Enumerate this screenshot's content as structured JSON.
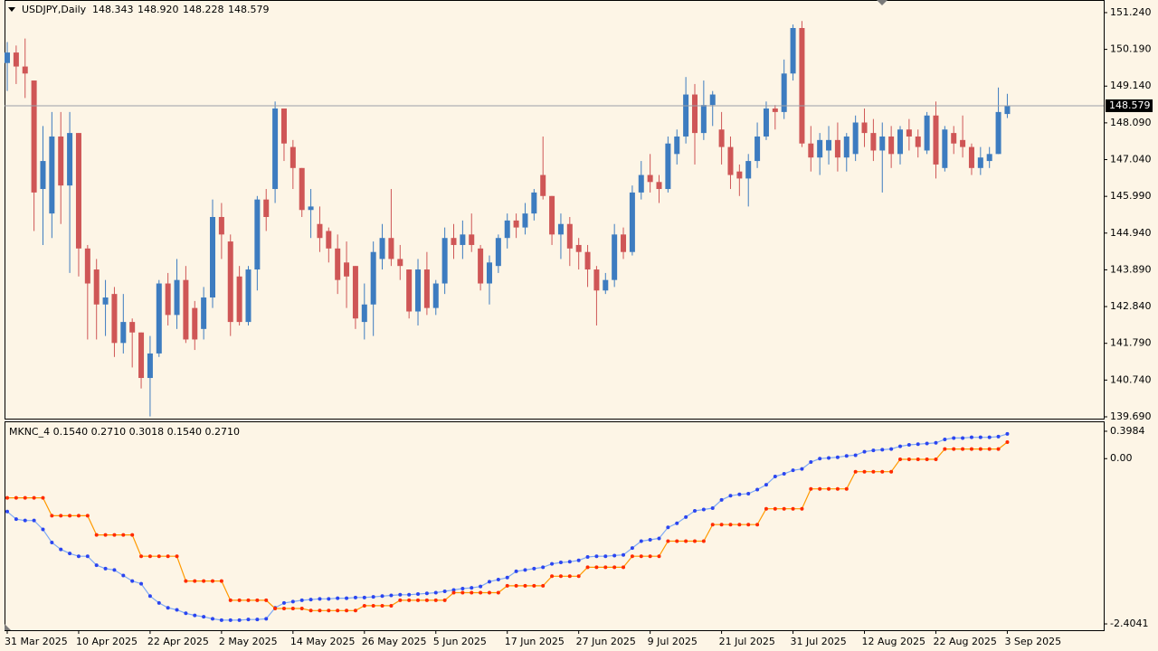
{
  "chart_data": [
    {
      "type": "candlestick",
      "title": "USDJPY,Daily",
      "ohlc_labels": [
        "148.343",
        "148.920",
        "148.228",
        "148.579"
      ],
      "categories": [
        "31 Mar 2025",
        null,
        null,
        null,
        null,
        null,
        null,
        null,
        "10 Apr 2025",
        null,
        null,
        null,
        null,
        null,
        null,
        null,
        "22 Apr 2025",
        null,
        null,
        null,
        null,
        null,
        null,
        null,
        "2 May 2025",
        null,
        null,
        null,
        null,
        null,
        null,
        null,
        "14 May 2025",
        null,
        null,
        null,
        null,
        null,
        null,
        null,
        "26 May 2025",
        null,
        null,
        null,
        null,
        null,
        null,
        null,
        "5 Jun 2025",
        null,
        null,
        null,
        null,
        null,
        null,
        null,
        "17 Jun 2025",
        null,
        null,
        null,
        null,
        null,
        null,
        null,
        "27 Jun 2025",
        null,
        null,
        null,
        null,
        null,
        null,
        null,
        "9 Jul 2025",
        null,
        null,
        null,
        null,
        null,
        null,
        null,
        "21 Jul 2025",
        null,
        null,
        null,
        null,
        null,
        null,
        null,
        "31 Jul 2025",
        null,
        null,
        null,
        null,
        null,
        null,
        null,
        "12 Aug 2025",
        null,
        null,
        null,
        null,
        null,
        null,
        null,
        "22 Aug 2025",
        null,
        null,
        null,
        null,
        null,
        null,
        null,
        "3 Sep 2025"
      ],
      "open": [
        149.8,
        150.1,
        149.7,
        149.3,
        146.2,
        145.5,
        147.7,
        146.3,
        147.8,
        144.5,
        143.9,
        142.9,
        143.2,
        141.8,
        142.4,
        142.1,
        140.8,
        141.5,
        143.5,
        142.6,
        143.6,
        142.8,
        142.2,
        143.1,
        145.4,
        144.7,
        143.7,
        142.4,
        143.9,
        145.9,
        146.2,
        148.5,
        147.4,
        146.8,
        145.6,
        145.2,
        145.0,
        144.5,
        144.1,
        144.0,
        142.4,
        142.9,
        144.2,
        144.8,
        144.2,
        143.9,
        142.7,
        143.9,
        142.8,
        143.5,
        144.8,
        144.6,
        144.9,
        144.5,
        143.5,
        144.0,
        144.8,
        145.3,
        145.1,
        145.5,
        146.6,
        146.0,
        144.9,
        145.2,
        144.6,
        144.4,
        143.9,
        143.3,
        143.6,
        144.9,
        144.4,
        146.1,
        146.6,
        146.4,
        146.2,
        147.2,
        147.7,
        148.9,
        147.8,
        148.6,
        147.9,
        147.4,
        146.7,
        146.5,
        147.0,
        147.7,
        148.5,
        148.4,
        149.5,
        150.8,
        147.5,
        147.1,
        147.3,
        147.6,
        147.1,
        147.2,
        148.1,
        147.8,
        147.3,
        147.7,
        147.2,
        147.9,
        147.7,
        147.3,
        148.3,
        146.8,
        147.8,
        147.6,
        147.4,
        146.8,
        147.0,
        147.2,
        148.343
      ],
      "high": [
        150.4,
        150.3,
        150.5,
        149.3,
        148.0,
        148.4,
        148.4,
        148.4,
        147.8,
        144.6,
        144.2,
        143.6,
        143.4,
        143.2,
        142.5,
        142.1,
        142.0,
        143.6,
        143.8,
        144.2,
        144.0,
        143.0,
        143.4,
        145.9,
        145.8,
        144.9,
        144.0,
        144.0,
        146.0,
        146.2,
        148.7,
        148.5,
        147.6,
        146.8,
        146.2,
        145.7,
        145.1,
        144.9,
        144.7,
        144.0,
        143.5,
        144.7,
        145.2,
        146.2,
        144.6,
        143.9,
        144.2,
        144.4,
        143.6,
        145.1,
        145.2,
        145.3,
        145.5,
        144.6,
        144.3,
        144.9,
        145.5,
        145.5,
        145.8,
        146.2,
        147.7,
        146.0,
        145.5,
        145.4,
        144.8,
        144.6,
        144.0,
        143.8,
        145.2,
        145.1,
        146.3,
        147.0,
        147.2,
        146.6,
        147.7,
        147.9,
        149.4,
        149.2,
        149.3,
        149.0,
        148.4,
        147.7,
        146.9,
        147.2,
        148.1,
        148.7,
        148.6,
        149.9,
        150.9,
        151.0,
        148.0,
        147.8,
        148.0,
        148.1,
        147.8,
        148.3,
        148.5,
        148.2,
        148.1,
        148.0,
        148.0,
        148.2,
        147.9,
        148.4,
        148.7,
        148.0,
        148.0,
        148.3,
        147.5,
        147.4,
        147.4,
        149.1,
        148.92
      ],
      "low": [
        149.0,
        149.2,
        148.8,
        145.0,
        144.6,
        144.8,
        145.2,
        143.8,
        143.7,
        141.9,
        141.9,
        142.0,
        141.4,
        141.5,
        141.1,
        140.5,
        139.7,
        141.4,
        142.3,
        142.2,
        141.8,
        141.6,
        141.9,
        142.8,
        144.2,
        142.0,
        142.3,
        142.3,
        143.3,
        145.0,
        145.8,
        147.0,
        146.2,
        145.4,
        144.8,
        144.4,
        144.1,
        143.2,
        142.8,
        142.2,
        141.9,
        142.0,
        143.9,
        144.0,
        143.6,
        142.5,
        142.3,
        142.6,
        142.6,
        143.2,
        144.2,
        144.2,
        144.4,
        143.3,
        142.9,
        143.8,
        144.5,
        144.8,
        144.9,
        145.3,
        145.9,
        144.6,
        144.2,
        144.0,
        143.9,
        143.4,
        142.3,
        143.2,
        143.4,
        144.2,
        144.3,
        145.9,
        146.1,
        145.8,
        146.1,
        146.9,
        147.5,
        146.9,
        147.6,
        148.0,
        146.9,
        146.2,
        146.0,
        145.7,
        146.8,
        147.6,
        147.9,
        148.2,
        149.3,
        147.4,
        146.7,
        146.6,
        146.9,
        146.7,
        146.7,
        147.0,
        147.4,
        147.0,
        146.1,
        146.8,
        146.9,
        147.3,
        147.1,
        147.2,
        146.5,
        146.7,
        147.2,
        147.1,
        146.6,
        146.6,
        146.8,
        147.2,
        148.228
      ],
      "close": [
        150.1,
        149.7,
        149.5,
        146.1,
        147.0,
        147.7,
        146.3,
        147.8,
        144.5,
        143.5,
        142.9,
        143.1,
        141.8,
        142.4,
        142.1,
        140.8,
        141.5,
        143.5,
        142.6,
        143.6,
        141.9,
        141.9,
        143.1,
        145.4,
        144.9,
        142.4,
        142.4,
        143.9,
        145.9,
        145.4,
        148.5,
        147.5,
        146.8,
        145.6,
        145.7,
        144.8,
        144.5,
        143.6,
        143.7,
        142.5,
        142.9,
        144.4,
        144.8,
        144.2,
        144.0,
        142.7,
        143.9,
        142.8,
        143.5,
        144.8,
        144.6,
        144.9,
        144.6,
        143.5,
        144.1,
        144.8,
        145.3,
        145.1,
        145.5,
        146.1,
        146.0,
        144.9,
        145.2,
        144.5,
        144.4,
        143.9,
        143.3,
        143.6,
        144.9,
        144.4,
        146.1,
        146.6,
        146.4,
        146.2,
        147.5,
        147.7,
        148.9,
        147.8,
        148.6,
        148.9,
        147.4,
        146.6,
        146.5,
        147.0,
        147.7,
        148.5,
        148.4,
        149.5,
        150.8,
        147.5,
        147.1,
        147.6,
        147.6,
        147.1,
        147.7,
        148.1,
        147.8,
        147.3,
        147.7,
        147.2,
        147.9,
        147.7,
        147.4,
        148.3,
        146.9,
        147.9,
        147.5,
        147.4,
        146.8,
        147.1,
        147.2,
        148.4,
        148.579
      ],
      "up_color": "#3d7cc0",
      "down_color": "#cf5656",
      "ylim": [
        139.638,
        151.575
      ],
      "yticks": [
        {
          "value": 151.24,
          "label": "151.240"
        },
        {
          "value": 150.19,
          "label": "150.190"
        },
        {
          "value": 149.14,
          "label": "149.140"
        },
        {
          "value": 148.09,
          "label": "148.090"
        },
        {
          "value": 147.04,
          "label": "147.040"
        },
        {
          "value": 145.99,
          "label": "145.990"
        },
        {
          "value": 144.94,
          "label": "144.940"
        },
        {
          "value": 143.89,
          "label": "143.890"
        },
        {
          "value": 142.84,
          "label": "142.840"
        },
        {
          "value": 141.79,
          "label": "141.790"
        },
        {
          "value": 140.74,
          "label": "140.740"
        },
        {
          "value": 139.69,
          "label": "139.690"
        }
      ],
      "last_price": {
        "value": 148.579,
        "label": "148.579"
      }
    },
    {
      "type": "line",
      "title": "MKNC_4 0.1540 0.2710 0.3018 0.1540 0.2710",
      "series": [
        {
          "color": "#2b45f0",
          "line_color": "#7faaf5",
          "values": [
            -0.77,
            -0.88,
            -0.9,
            -0.9,
            -1.03,
            -1.22,
            -1.32,
            -1.38,
            -1.42,
            -1.42,
            -1.55,
            -1.6,
            -1.62,
            -1.7,
            -1.78,
            -1.82,
            -2.0,
            -2.1,
            -2.17,
            -2.2,
            -2.25,
            -2.28,
            -2.3,
            -2.33,
            -2.35,
            -2.35,
            -2.35,
            -2.34,
            -2.34,
            -2.33,
            -2.17,
            -2.1,
            -2.08,
            -2.06,
            -2.05,
            -2.04,
            -2.04,
            -2.03,
            -2.03,
            -2.02,
            -2.02,
            -2.01,
            -2.0,
            -1.99,
            -1.98,
            -1.98,
            -1.97,
            -1.96,
            -1.95,
            -1.93,
            -1.91,
            -1.89,
            -1.88,
            -1.86,
            -1.79,
            -1.76,
            -1.73,
            -1.64,
            -1.62,
            -1.6,
            -1.58,
            -1.53,
            -1.51,
            -1.5,
            -1.48,
            -1.43,
            -1.42,
            -1.42,
            -1.41,
            -1.4,
            -1.3,
            -1.2,
            -1.18,
            -1.16,
            -1.0,
            -0.94,
            -0.85,
            -0.76,
            -0.74,
            -0.72,
            -0.6,
            -0.54,
            -0.52,
            -0.51,
            -0.45,
            -0.38,
            -0.26,
            -0.22,
            -0.17,
            -0.15,
            -0.05,
            0,
            0.01,
            0.02,
            0.04,
            0.05,
            0.1,
            0.12,
            0.13,
            0.14,
            0.18,
            0.2,
            0.21,
            0.22,
            0.23,
            0.28,
            0.3,
            0.3,
            0.31,
            0.31,
            0.31,
            0.32,
            0.36
          ]
        },
        {
          "color": "#ff2a00",
          "line_color": "#ff9a00",
          "values": [
            -0.57,
            -0.57,
            -0.57,
            -0.57,
            -0.57,
            -0.83,
            -0.83,
            -0.83,
            -0.83,
            -0.83,
            -1.11,
            -1.11,
            -1.11,
            -1.11,
            -1.11,
            -1.42,
            -1.42,
            -1.42,
            -1.42,
            -1.42,
            -1.78,
            -1.78,
            -1.78,
            -1.78,
            -1.78,
            -2.06,
            -2.06,
            -2.06,
            -2.06,
            -2.06,
            -2.18,
            -2.18,
            -2.18,
            -2.18,
            -2.21,
            -2.21,
            -2.21,
            -2.21,
            -2.21,
            -2.21,
            -2.14,
            -2.14,
            -2.14,
            -2.14,
            -2.06,
            -2.06,
            -2.06,
            -2.06,
            -2.06,
            -2.06,
            -1.95,
            -1.95,
            -1.95,
            -1.95,
            -1.95,
            -1.95,
            -1.85,
            -1.85,
            -1.85,
            -1.85,
            -1.85,
            -1.71,
            -1.71,
            -1.71,
            -1.71,
            -1.58,
            -1.58,
            -1.58,
            -1.58,
            -1.58,
            -1.42,
            -1.42,
            -1.42,
            -1.42,
            -1.2,
            -1.2,
            -1.2,
            -1.2,
            -1.2,
            -0.96,
            -0.96,
            -0.96,
            -0.96,
            -0.96,
            -0.96,
            -0.73,
            -0.73,
            -0.73,
            -0.73,
            -0.73,
            -0.44,
            -0.44,
            -0.44,
            -0.44,
            -0.44,
            -0.19,
            -0.19,
            -0.19,
            -0.19,
            -0.19,
            -0.01,
            -0.01,
            -0.01,
            -0.01,
            -0.01,
            0.14,
            0.14,
            0.14,
            0.14,
            0.14,
            0.14,
            0.14,
            0.24
          ]
        }
      ],
      "ylim": [
        -2.4958,
        0.5294
      ],
      "yticks": [
        0.3984,
        {
          "value": 0,
          "label": "0.00"
        },
        -2.4041
      ]
    }
  ]
}
